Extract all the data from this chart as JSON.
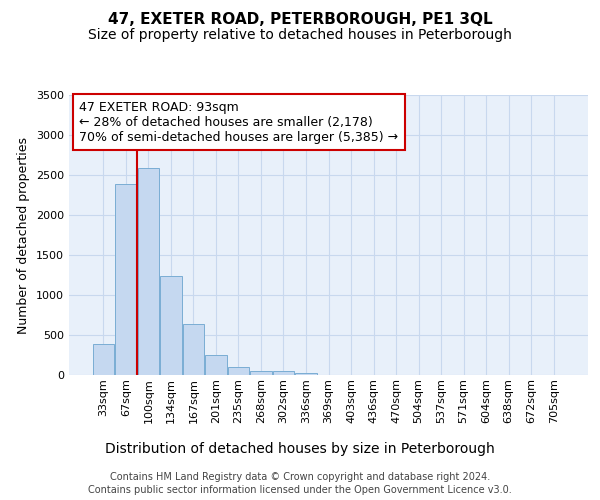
{
  "title": "47, EXETER ROAD, PETERBOROUGH, PE1 3QL",
  "subtitle": "Size of property relative to detached houses in Peterborough",
  "xlabel": "Distribution of detached houses by size in Peterborough",
  "ylabel": "Number of detached properties",
  "categories": [
    "33sqm",
    "67sqm",
    "100sqm",
    "134sqm",
    "167sqm",
    "201sqm",
    "235sqm",
    "268sqm",
    "302sqm",
    "336sqm",
    "369sqm",
    "403sqm",
    "436sqm",
    "470sqm",
    "504sqm",
    "537sqm",
    "571sqm",
    "604sqm",
    "638sqm",
    "672sqm",
    "705sqm"
  ],
  "values": [
    390,
    2390,
    2590,
    1240,
    640,
    250,
    95,
    55,
    50,
    30,
    0,
    0,
    0,
    0,
    0,
    0,
    0,
    0,
    0,
    0,
    0
  ],
  "bar_color": "#c5d8f0",
  "bar_edge_color": "#7aadd4",
  "grid_color": "#c8d8ee",
  "background_color": "#e8f0fa",
  "vline_color": "#cc0000",
  "annotation_text": "47 EXETER ROAD: 93sqm\n← 28% of detached houses are smaller (2,178)\n70% of semi-detached houses are larger (5,385) →",
  "annotation_box_color": "white",
  "annotation_box_edge_color": "#cc0000",
  "ylim": [
    0,
    3500
  ],
  "yticks": [
    0,
    500,
    1000,
    1500,
    2000,
    2500,
    3000,
    3500
  ],
  "footer_line1": "Contains HM Land Registry data © Crown copyright and database right 2024.",
  "footer_line2": "Contains public sector information licensed under the Open Government Licence v3.0.",
  "title_fontsize": 11,
  "subtitle_fontsize": 10,
  "xlabel_fontsize": 10,
  "ylabel_fontsize": 9,
  "tick_fontsize": 8,
  "annotation_fontsize": 9,
  "footer_fontsize": 7
}
